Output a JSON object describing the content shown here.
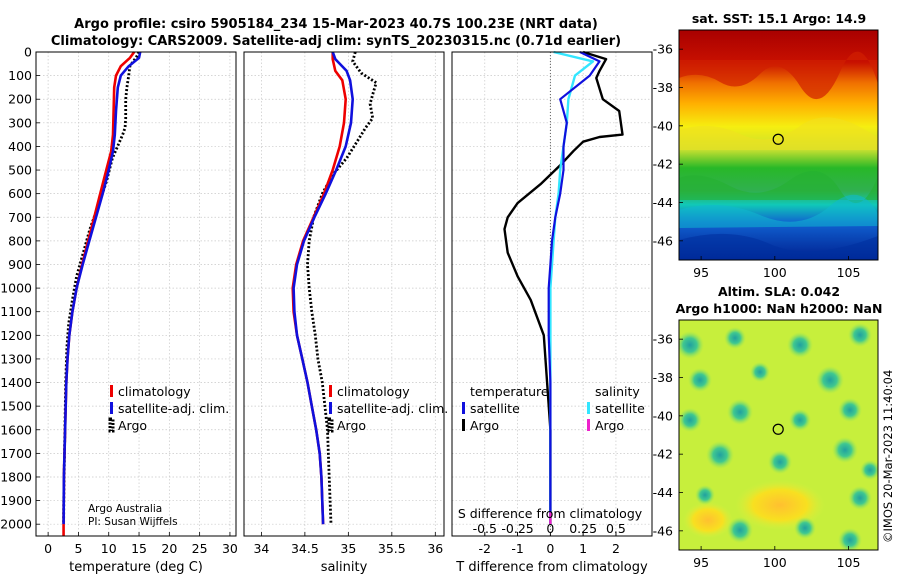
{
  "header": {
    "line1": "Argo profile: csiro 5905184_234 15-Mar-2023 40.7S 100.23E (NRT data)",
    "line2": "Climatology: CARS2009. Satellite-adj clim: synTS_20230315.nc (0.71d earlier)"
  },
  "credit": {
    "line1": "Argo Australia",
    "line2": "PI: Susan Wijffels"
  },
  "side_label": "©IMOS 20-Mar-2023 11:40:04",
  "colors": {
    "climatology": "#ee0000",
    "satellite": "#1010dd",
    "argo": "#000000",
    "cyan": "#33e6ff",
    "magenta": "#ee22cc"
  },
  "chart_data": [
    {
      "type": "line",
      "id": "temperature",
      "xlabel": "temperature (deg C)",
      "xlim": [
        -2,
        31
      ],
      "xticks": [
        0,
        5,
        10,
        15,
        20,
        25,
        30
      ],
      "ylim": [
        2050,
        0
      ],
      "yticks": [
        0,
        100,
        200,
        300,
        400,
        500,
        600,
        700,
        800,
        900,
        1000,
        1100,
        1200,
        1300,
        1400,
        1500,
        1600,
        1700,
        1800,
        1900,
        2000
      ],
      "legend": [
        "climatology",
        "satellite-adj. clim.",
        "Argo"
      ],
      "series": [
        {
          "name": "climatology",
          "x": [
            14.2,
            13.5,
            12.0,
            11.2,
            10.9,
            10.8,
            10.7,
            10.4,
            9.6,
            8.6,
            7.6,
            6.6,
            5.6,
            4.7,
            4.0,
            3.5,
            3.2,
            3.0,
            2.9,
            2.8,
            2.7,
            2.6,
            2.55
          ],
          "y": [
            0,
            25,
            60,
            100,
            150,
            250,
            350,
            420,
            500,
            600,
            700,
            800,
            900,
            1000,
            1100,
            1200,
            1300,
            1400,
            1500,
            1600,
            1700,
            1800,
            2000
          ]
        },
        {
          "name": "satellite-adj. clim.",
          "x": [
            15.2,
            15.0,
            13.3,
            12.0,
            11.5,
            11.2,
            11.0,
            10.7,
            10.0,
            9.0,
            7.9,
            6.8,
            5.7,
            4.7,
            4.0,
            3.5,
            3.2,
            3.0,
            2.9,
            2.8,
            2.7,
            2.6,
            2.55
          ],
          "y": [
            0,
            25,
            60,
            100,
            150,
            250,
            350,
            420,
            500,
            600,
            700,
            800,
            900,
            1000,
            1100,
            1200,
            1300,
            1400,
            1500,
            1600,
            1700,
            1800,
            2000
          ]
        },
        {
          "name": "Argo",
          "x": [
            15.0,
            14.6,
            13.5,
            13.3,
            13.0,
            12.8,
            12.8,
            12.7,
            12.3,
            10.6,
            9.6,
            8.3,
            6.9,
            5.8,
            4.7,
            4.0,
            3.4,
            3.1,
            2.9,
            2.8,
            2.7,
            2.6,
            2.55
          ],
          "y": [
            0,
            20,
            60,
            100,
            150,
            200,
            280,
            320,
            350,
            450,
            550,
            650,
            750,
            850,
            950,
            1050,
            1150,
            1250,
            1400,
            1550,
            1700,
            1850,
            2000
          ]
        }
      ]
    },
    {
      "type": "line",
      "id": "salinity",
      "xlabel": "salinity",
      "xlim": [
        33.8,
        36.1
      ],
      "xticks": [
        34,
        34.5,
        35,
        35.5,
        36
      ],
      "ylim": [
        2050,
        0
      ],
      "legend": [
        "climatology",
        "satellite-adj. clim.",
        "Argo"
      ],
      "series": [
        {
          "name": "climatology",
          "x": [
            34.82,
            34.82,
            34.85,
            34.93,
            34.97,
            34.95,
            34.9,
            34.82,
            34.72,
            34.6,
            34.48,
            34.4,
            34.36,
            34.37,
            34.41,
            34.47,
            34.53,
            34.58,
            34.63,
            34.67,
            34.69,
            34.71
          ],
          "y": [
            0,
            30,
            80,
            120,
            200,
            300,
            400,
            500,
            600,
            700,
            800,
            900,
            1000,
            1100,
            1200,
            1300,
            1400,
            1500,
            1600,
            1700,
            1800,
            2000
          ]
        },
        {
          "name": "satellite-adj. clim.",
          "x": [
            34.82,
            34.85,
            34.98,
            35.02,
            35.05,
            35.03,
            34.97,
            34.86,
            34.74,
            34.61,
            34.49,
            34.41,
            34.37,
            34.38,
            34.41,
            34.47,
            34.53,
            34.58,
            34.63,
            34.67,
            34.69,
            34.71
          ],
          "y": [
            0,
            30,
            80,
            120,
            200,
            300,
            400,
            500,
            600,
            700,
            800,
            900,
            1000,
            1100,
            1200,
            1300,
            1400,
            1500,
            1600,
            1700,
            1800,
            2000
          ]
        },
        {
          "name": "Argo",
          "x": [
            35.08,
            35.05,
            35.15,
            35.32,
            35.28,
            35.25,
            35.28,
            35.2,
            35.1,
            34.98,
            34.82,
            34.7,
            34.6,
            34.55,
            34.53,
            34.55,
            34.58,
            34.62,
            34.65,
            34.7,
            34.73,
            34.76,
            34.78,
            34.8
          ],
          "y": [
            0,
            40,
            90,
            130,
            180,
            220,
            280,
            320,
            380,
            450,
            520,
            600,
            700,
            800,
            900,
            1000,
            1100,
            1200,
            1300,
            1400,
            1500,
            1600,
            1800,
            2000
          ]
        }
      ]
    },
    {
      "type": "line",
      "id": "difference",
      "xlabel": "T difference from climatology",
      "top_xlabel": "S difference from climatology",
      "xlim": [
        -3,
        3.1
      ],
      "xticks": [
        -2,
        -1,
        0,
        1,
        2
      ],
      "s_ticks": [
        -0.5,
        -0.25,
        0,
        0.25,
        0.5
      ],
      "ylim": [
        2050,
        0
      ],
      "legend_temperature": [
        "temperature",
        "satellite",
        "Argo"
      ],
      "legend_salinity": [
        "salinity",
        "satellite",
        "Argo"
      ],
      "series": [
        {
          "name": "T satellite",
          "x": [
            0.9,
            1.5,
            1.2,
            0.3,
            0.5,
            0.4,
            0.4,
            0.3,
            0.15,
            0.05,
            0.0,
            -0.05,
            -0.05,
            0.0,
            0.0,
            0.0,
            0.0
          ],
          "y": [
            0,
            40,
            100,
            200,
            300,
            400,
            500,
            600,
            700,
            800,
            900,
            1000,
            1200,
            1400,
            1600,
            1800,
            2000
          ]
        },
        {
          "name": "T Argo",
          "x": [
            1.0,
            1.7,
            1.5,
            1.4,
            1.6,
            2.1,
            2.2,
            1.5,
            1.0,
            0.7,
            0.3,
            -0.3,
            -1.0,
            -1.3,
            -1.4,
            -1.3,
            -1.0,
            -0.6,
            -0.2,
            -0.1,
            0.0,
            0.0,
            0.0
          ],
          "y": [
            0,
            30,
            80,
            110,
            200,
            250,
            350,
            360,
            380,
            420,
            480,
            560,
            640,
            700,
            750,
            850,
            950,
            1050,
            1200,
            1400,
            1600,
            1800,
            2000
          ]
        },
        {
          "name": "S satellite",
          "x": [
            0.1,
            1.3,
            0.75,
            0.55,
            0.5,
            0.4,
            0.3,
            0.25,
            0.15,
            0.1,
            0.05,
            0.0,
            0.0,
            0.0,
            0.0
          ],
          "y": [
            0,
            40,
            100,
            200,
            300,
            400,
            500,
            600,
            700,
            800,
            900,
            1000,
            1200,
            1500,
            2000
          ]
        },
        {
          "name": "S Argo",
          "x": [
            0.0,
            0.0
          ],
          "y": [
            1950,
            2000
          ]
        }
      ]
    },
    {
      "type": "heatmap",
      "id": "sst-map",
      "title": "sat. SST: 15.1 Argo: 14.9",
      "xlim": [
        93.5,
        107
      ],
      "ylim": [
        -47,
        -35
      ],
      "xticks": [
        95,
        100,
        105
      ],
      "yticks": [
        -36,
        -38,
        -40,
        -42,
        -44,
        -46
      ],
      "marker": {
        "lon": 100.23,
        "lat": -40.7
      }
    },
    {
      "type": "heatmap",
      "id": "sla-map",
      "title": "Altim. SLA: 0.042",
      "subtitle": "Argo h1000: NaN h2000: NaN",
      "xlim": [
        93.5,
        107
      ],
      "ylim": [
        -47,
        -35
      ],
      "xticks": [
        95,
        100,
        105
      ],
      "yticks": [
        -36,
        -38,
        -40,
        -42,
        -44,
        -46
      ],
      "marker": {
        "lon": 100.23,
        "lat": -40.7
      }
    }
  ]
}
